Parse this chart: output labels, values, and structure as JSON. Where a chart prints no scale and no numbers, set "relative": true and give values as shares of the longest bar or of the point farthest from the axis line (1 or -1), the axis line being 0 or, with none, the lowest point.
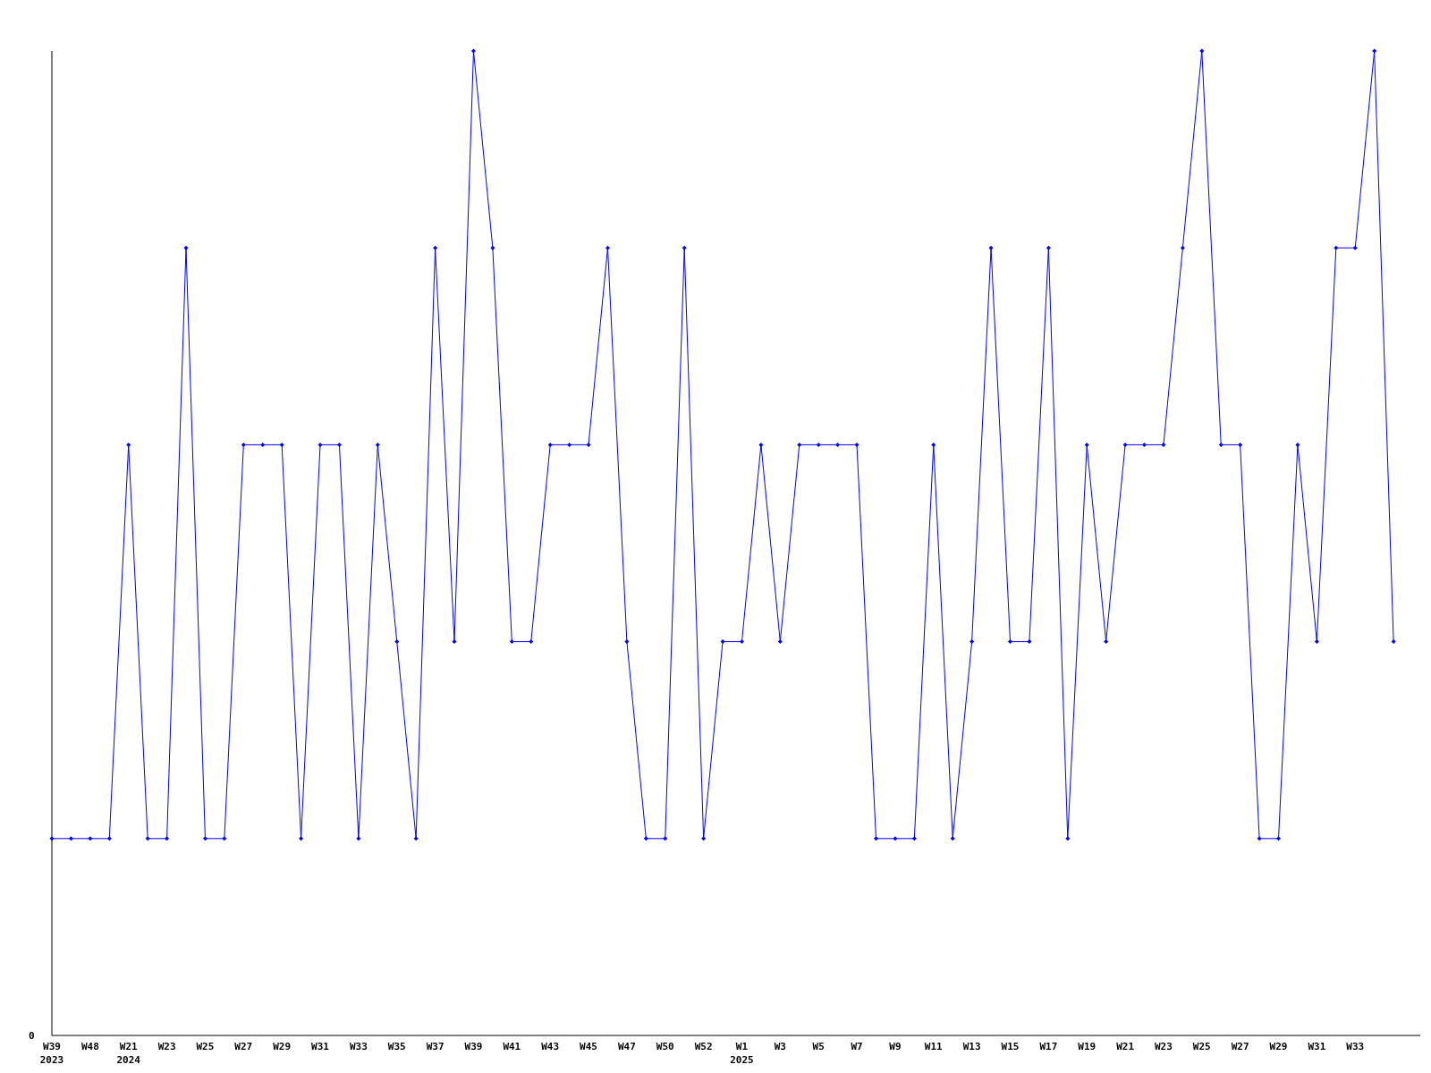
{
  "chart_data": {
    "type": "line",
    "relative": true,
    "marker": "diamond",
    "categories": [
      "W39\n2023",
      null,
      "W48",
      null,
      "W21\n2024",
      null,
      "W23",
      null,
      "W25",
      null,
      "W27",
      null,
      "W29",
      null,
      "W31",
      null,
      "W33",
      null,
      "W35",
      null,
      "W37",
      null,
      "W39",
      null,
      "W41",
      null,
      "W43",
      null,
      "W45",
      null,
      "W47",
      null,
      "W50",
      null,
      "W52",
      null,
      "W1\n2025",
      null,
      "W3",
      null,
      "W5",
      null,
      "W7",
      null,
      "W9",
      null,
      "W11",
      null,
      "W13",
      null,
      "W15",
      null,
      "W17",
      null,
      "W19",
      null,
      "W21",
      null,
      "W23",
      null,
      "W25",
      null,
      "W27",
      null,
      "W29",
      null,
      "W31",
      null,
      "W33",
      null,
      null
    ],
    "series": [
      {
        "color": "#0000ff",
        "values": [
          0.2,
          0.2,
          0.2,
          0.2,
          0.6,
          0.2,
          0.2,
          0.8,
          0.2,
          0.2,
          0.6,
          0.6,
          0.6,
          0.2,
          0.6,
          0.6,
          0.2,
          0.6,
          0.4,
          0.2,
          0.8,
          0.4,
          1,
          0.8,
          0.4,
          0.4,
          0.6,
          0.6,
          0.6,
          0.8,
          0.4,
          0.2,
          0.2,
          0.8,
          0.2,
          0.4,
          0.4,
          0.6,
          0.4,
          0.6,
          0.6,
          0.6,
          0.6,
          0.2,
          0.2,
          0.2,
          0.6,
          0.2,
          0.4,
          0.8,
          0.4,
          0.4,
          0.8,
          0.2,
          0.6,
          0.4,
          0.6,
          0.6,
          0.6,
          0.8,
          1,
          0.6,
          0.6,
          0.2,
          0.2,
          0.6,
          0.4,
          0.8,
          0.8,
          1,
          0.4
        ]
      }
    ],
    "annotations": [
      "0"
    ]
  }
}
